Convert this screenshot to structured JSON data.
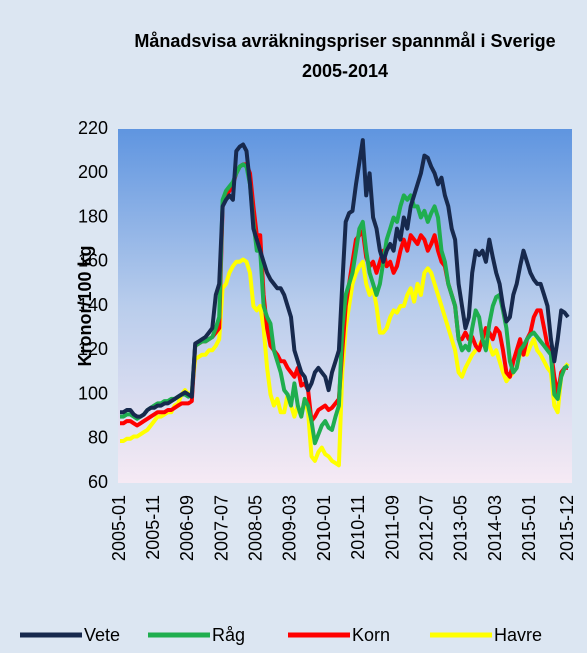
{
  "chart_data": {
    "type": "line",
    "title": "Månadsvisa avräkningspriser spannmål i Sverige 2005-2014",
    "y_label": "Kronor/100 kg",
    "categories": [
      "2005-01",
      null,
      null,
      null,
      null,
      null,
      null,
      null,
      null,
      null,
      "2005-11",
      null,
      null,
      null,
      null,
      null,
      null,
      null,
      null,
      null,
      "2006-09",
      null,
      null,
      null,
      null,
      null,
      null,
      null,
      null,
      null,
      "2007-07",
      null,
      null,
      null,
      null,
      null,
      null,
      null,
      null,
      null,
      "2008-05",
      null,
      null,
      null,
      null,
      null,
      null,
      null,
      null,
      null,
      "2009-03",
      null,
      null,
      null,
      null,
      null,
      null,
      null,
      null,
      null,
      "2010-01",
      null,
      null,
      null,
      null,
      null,
      null,
      null,
      null,
      null,
      "2010-11",
      null,
      null,
      null,
      null,
      null,
      null,
      null,
      null,
      null,
      "2011-09",
      null,
      null,
      null,
      null,
      null,
      null,
      null,
      null,
      null,
      "2012-07",
      null,
      null,
      null,
      null,
      null,
      null,
      null,
      null,
      null,
      "2013-05",
      null,
      null,
      null,
      null,
      null,
      null,
      null,
      null,
      null,
      "2014-03",
      null,
      null,
      null,
      null,
      null,
      null,
      null,
      null,
      null,
      "2015-01",
      null,
      null,
      null,
      null,
      null,
      null,
      null,
      null,
      null,
      null,
      "2015-12"
    ],
    "series": [
      {
        "name": "Vete",
        "color": "#17294d",
        "values": [
          92,
          92,
          93,
          93,
          91,
          90,
          90,
          91,
          93,
          94,
          94,
          95,
          95,
          96,
          96,
          97,
          98,
          99,
          100,
          101,
          100,
          99,
          123,
          124,
          125,
          126,
          128,
          130,
          145,
          150,
          185,
          188,
          190,
          188,
          210,
          212,
          213,
          210,
          195,
          175,
          170,
          165,
          160,
          155,
          152,
          150,
          148,
          148,
          145,
          140,
          135,
          120,
          115,
          110,
          108,
          102,
          105,
          110,
          112,
          110,
          108,
          102,
          110,
          115,
          120,
          150,
          178,
          182,
          183,
          195,
          205,
          215,
          190,
          200,
          180,
          175,
          165,
          160,
          165,
          168,
          165,
          175,
          170,
          180,
          175,
          185,
          190,
          195,
          200,
          208,
          207,
          203,
          200,
          195,
          198,
          190,
          185,
          175,
          170,
          150,
          140,
          130,
          135,
          155,
          165,
          163,
          165,
          160,
          170,
          162,
          155,
          150,
          140,
          133,
          135,
          145,
          150,
          158,
          165,
          160,
          155,
          152,
          150,
          150,
          145,
          140,
          125,
          115,
          125,
          138,
          137,
          135
        ]
      },
      {
        "name": "Råg",
        "color": "#1fae4f",
        "values": [
          90,
          90,
          91,
          91,
          90,
          89,
          90,
          91,
          93,
          94,
          95,
          96,
          96,
          97,
          97,
          98,
          98,
          99,
          100,
          100,
          99,
          100,
          122,
          123,
          124,
          124,
          125,
          126,
          130,
          135,
          188,
          192,
          194,
          196,
          200,
          203,
          204,
          203,
          195,
          178,
          165,
          165,
          140,
          135,
          132,
          120,
          115,
          110,
          102,
          100,
          95,
          105,
          95,
          90,
          98,
          95,
          88,
          78,
          82,
          86,
          88,
          85,
          84,
          90,
          95,
          130,
          145,
          150,
          155,
          165,
          175,
          178,
          165,
          155,
          150,
          145,
          150,
          160,
          170,
          175,
          180,
          178,
          185,
          190,
          188,
          190,
          185,
          185,
          180,
          183,
          178,
          182,
          185,
          180,
          165,
          160,
          150,
          145,
          140,
          125,
          120,
          122,
          120,
          130,
          138,
          135,
          125,
          120,
          132,
          140,
          144,
          145,
          138,
          130,
          115,
          110,
          112,
          120,
          122,
          125,
          127,
          128,
          126,
          124,
          122,
          120,
          118,
          100,
          98,
          108,
          112,
          113
        ]
      },
      {
        "name": "Korn",
        "color": "#ff0000",
        "values": [
          87,
          87,
          88,
          88,
          87,
          86,
          87,
          88,
          89,
          90,
          91,
          92,
          92,
          92,
          93,
          93,
          94,
          95,
          96,
          96,
          96,
          97,
          122,
          123,
          124,
          124,
          125,
          126,
          128,
          130,
          185,
          190,
          192,
          195,
          200,
          203,
          204,
          204,
          200,
          185,
          172,
          172,
          145,
          130,
          122,
          120,
          118,
          115,
          115,
          112,
          110,
          108,
          112,
          104,
          105,
          102,
          88,
          90,
          93,
          94,
          95,
          93,
          94,
          96,
          98,
          120,
          140,
          150,
          160,
          170,
          172,
          174,
          162,
          158,
          160,
          155,
          160,
          165,
          158,
          160,
          155,
          158,
          165,
          170,
          165,
          172,
          170,
          168,
          172,
          170,
          165,
          168,
          172,
          165,
          160,
          158,
          150,
          145,
          140,
          125,
          125,
          128,
          125,
          126,
          122,
          120,
          125,
          130,
          128,
          125,
          130,
          128,
          120,
          110,
          108,
          115,
          120,
          125,
          118,
          125,
          128,
          135,
          138,
          138,
          130,
          122,
          120,
          108,
          100,
          110,
          112,
          112
        ]
      },
      {
        "name": "Havre",
        "color": "#ffff00",
        "values": [
          79,
          79,
          80,
          80,
          81,
          81,
          82,
          83,
          84,
          86,
          88,
          90,
          90,
          91,
          92,
          92,
          95,
          96,
          100,
          102,
          100,
          101,
          116,
          117,
          118,
          118,
          120,
          120,
          122,
          125,
          148,
          150,
          155,
          158,
          160,
          160,
          161,
          160,
          155,
          140,
          138,
          140,
          130,
          112,
          100,
          95,
          98,
          92,
          92,
          100,
          95,
          90,
          95,
          90,
          98,
          92,
          72,
          70,
          74,
          76,
          73,
          72,
          70,
          69,
          68,
          110,
          130,
          140,
          150,
          155,
          158,
          160,
          150,
          145,
          148,
          140,
          128,
          128,
          130,
          135,
          138,
          137,
          140,
          140,
          145,
          148,
          142,
          150,
          145,
          155,
          157,
          155,
          150,
          145,
          140,
          135,
          130,
          125,
          120,
          110,
          108,
          112,
          115,
          118,
          120,
          122,
          125,
          128,
          122,
          118,
          120,
          115,
          110,
          106,
          108,
          110,
          112,
          118,
          120,
          118,
          122,
          125,
          120,
          118,
          115,
          112,
          110,
          95,
          92,
          108,
          112,
          114
        ]
      }
    ],
    "ylim": [
      60,
      220
    ],
    "yticks": [
      60,
      80,
      100,
      120,
      140,
      160,
      180,
      200,
      220
    ],
    "grid": false,
    "legend": "bottom"
  }
}
